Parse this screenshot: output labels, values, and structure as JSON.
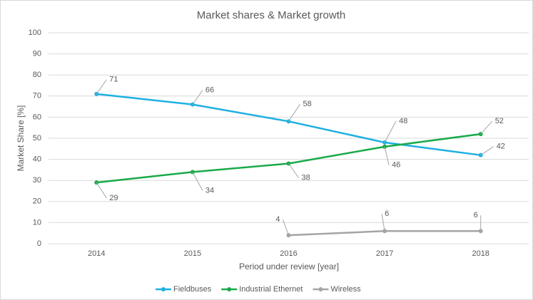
{
  "chart_data": {
    "type": "line",
    "title": "Market shares & Market growth",
    "x_label": "Period under review [year]",
    "y_label": "Market Share [%]",
    "categories": [
      "2014",
      "2015",
      "2016",
      "2017",
      "2018"
    ],
    "series": [
      {
        "name": "Fieldbuses",
        "color": "#1fb0e3",
        "values": [
          71,
          66,
          58,
          48,
          42
        ]
      },
      {
        "name": "Industrial Ethernet",
        "color": "#1aaa4a",
        "values": [
          29,
          34,
          38,
          46,
          52
        ]
      },
      {
        "name": "Wireless",
        "color": "#a5a5a5",
        "values": [
          null,
          null,
          4,
          6,
          6
        ]
      }
    ],
    "ylim": [
      0,
      100
    ],
    "yticks": [
      0,
      10,
      20,
      30,
      40,
      50,
      60,
      70,
      80,
      90,
      100
    ],
    "grid": true,
    "legend": "bottom"
  }
}
